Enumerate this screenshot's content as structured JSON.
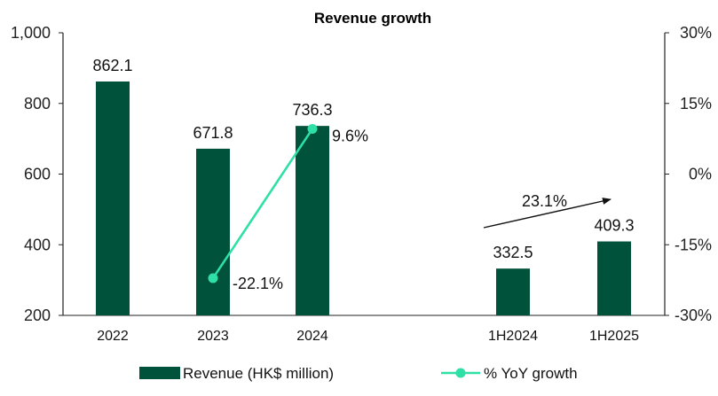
{
  "chart_data": {
    "type": "bar",
    "title": "Revenue growth",
    "categories": [
      "2022",
      "2023",
      "2024",
      "1H2024",
      "1H2025"
    ],
    "series": [
      {
        "name": "Revenue (HK$ million)",
        "type": "bar",
        "axis": "left",
        "values": [
          862.1,
          671.8,
          736.3,
          332.5,
          409.3
        ],
        "labels": [
          "862.1",
          "671.8",
          "736.3",
          "332.5",
          "409.3"
        ]
      },
      {
        "name": "% YoY growth",
        "type": "line",
        "axis": "right",
        "values": [
          null,
          -22.1,
          9.6,
          null,
          null
        ],
        "labels": [
          "",
          "-22.1%",
          "9.6%",
          "",
          ""
        ]
      }
    ],
    "annotation": {
      "text": "23.1%",
      "from": "1H2024",
      "to": "1H2025"
    },
    "y_left": {
      "min": 200,
      "max": 1000,
      "ticks": [
        "1,000",
        "800",
        "600",
        "400",
        "200"
      ]
    },
    "y_right": {
      "min": -30,
      "max": 30,
      "ticks": [
        "30%",
        "15%",
        "0%",
        "-15%",
        "-30%"
      ]
    },
    "grid": false,
    "legend_position": "bottom",
    "colors": {
      "bar": "#00523b",
      "line": "#2ee0a6",
      "text": "#111111",
      "axis": "#222222"
    }
  }
}
